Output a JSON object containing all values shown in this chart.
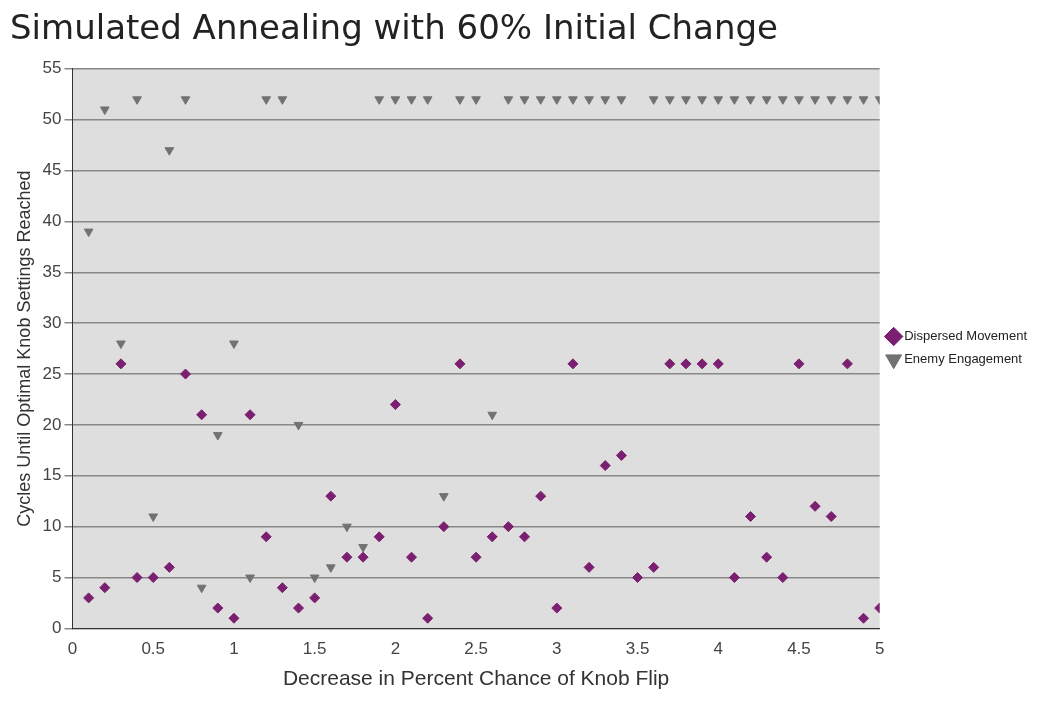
{
  "chart_data": {
    "type": "scatter",
    "title": "Simulated Annealing with 60% Initial Change",
    "xlabel": "Decrease in Percent Chance of Knob Flip",
    "ylabel": "Cycles Until Optimal Knob Settings Reached",
    "x": [
      0.1,
      0.2,
      0.3,
      0.4,
      0.5,
      0.6,
      0.7,
      0.8,
      0.9,
      1.0,
      1.1,
      1.2,
      1.3,
      1.4,
      1.5,
      1.6,
      1.7,
      1.8,
      1.9,
      2.0,
      2.1,
      2.2,
      2.3,
      2.4,
      2.5,
      2.6,
      2.7,
      2.8,
      2.9,
      3.0,
      3.1,
      3.2,
      3.3,
      3.4,
      3.5,
      3.6,
      3.7,
      3.8,
      3.9,
      4.0,
      4.1,
      4.2,
      4.3,
      4.4,
      4.5,
      4.6,
      4.7,
      4.8,
      4.9,
      5.0
    ],
    "series": [
      {
        "name": "Dispersed Movement",
        "color": "#7b1f70",
        "marker": "diamond",
        "values": [
          3,
          4,
          26,
          5,
          5,
          6,
          25,
          21,
          2,
          1,
          21,
          9,
          4,
          2,
          3,
          13,
          7,
          7,
          9,
          22,
          7,
          1,
          10,
          26,
          7,
          9,
          10,
          9,
          13,
          2,
          26,
          6,
          16,
          17,
          5,
          6,
          26,
          26,
          26,
          26,
          5,
          11,
          7,
          5,
          26,
          12,
          11,
          26,
          1,
          2
        ]
      },
      {
        "name": "Enemy Engagement",
        "color": "#727272",
        "marker": "triangle",
        "values": [
          39,
          51,
          28,
          52,
          11,
          47,
          52,
          4,
          19,
          28,
          5,
          52,
          52,
          20,
          5,
          6,
          10,
          8,
          52,
          52,
          52,
          52,
          13,
          52,
          52,
          21,
          52,
          52,
          52,
          52,
          52,
          52,
          52,
          52,
          null,
          52,
          52,
          52,
          52,
          52,
          52,
          52,
          52,
          52,
          52,
          52,
          52,
          52,
          52,
          52
        ]
      }
    ],
    "xlim": [
      0,
      5
    ],
    "xticks": [
      0,
      0.5,
      1,
      1.5,
      2,
      2.5,
      3,
      3.5,
      4,
      4.5,
      5
    ],
    "ylim": [
      0,
      55
    ],
    "yticks": [
      0,
      5,
      10,
      15,
      20,
      25,
      30,
      35,
      40,
      45,
      50,
      55
    ],
    "grid": "y",
    "legend": "right"
  }
}
